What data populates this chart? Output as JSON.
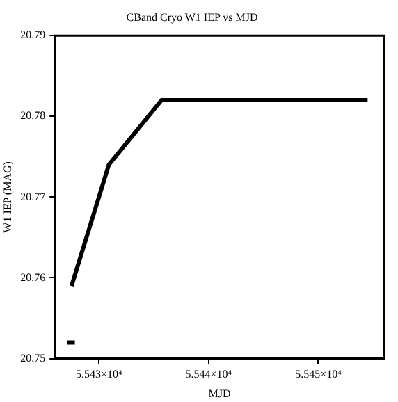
{
  "chart_data": {
    "type": "line",
    "title": "CBand Cryo W1 IEP vs MJD",
    "xlabel": "MJD",
    "ylabel": "W1 IEP (MAG)",
    "series": [
      {
        "color": "#000000",
        "x": [
          55427.5,
          55430.9,
          55435.7,
          55454.5
        ],
        "values": [
          20.759,
          20.774,
          20.782,
          20.782
        ]
      },
      {
        "color": "#000000",
        "x": [
          55427.1,
          55427.8
        ],
        "values": [
          20.752,
          20.752
        ]
      }
    ],
    "xlim": [
      55426,
      55456
    ],
    "xticks": [
      {
        "value": 55430,
        "label": "5.543×10⁴"
      },
      {
        "value": 55440,
        "label": "5.544×10⁴"
      },
      {
        "value": 55450,
        "label": "5.545×10⁴"
      }
    ],
    "ylim": [
      20.75,
      20.79
    ],
    "yticks": [
      20.75,
      20.76,
      20.77,
      20.78,
      20.79
    ],
    "grid": false,
    "legend": false,
    "marker": "none",
    "line_style": "solid"
  }
}
